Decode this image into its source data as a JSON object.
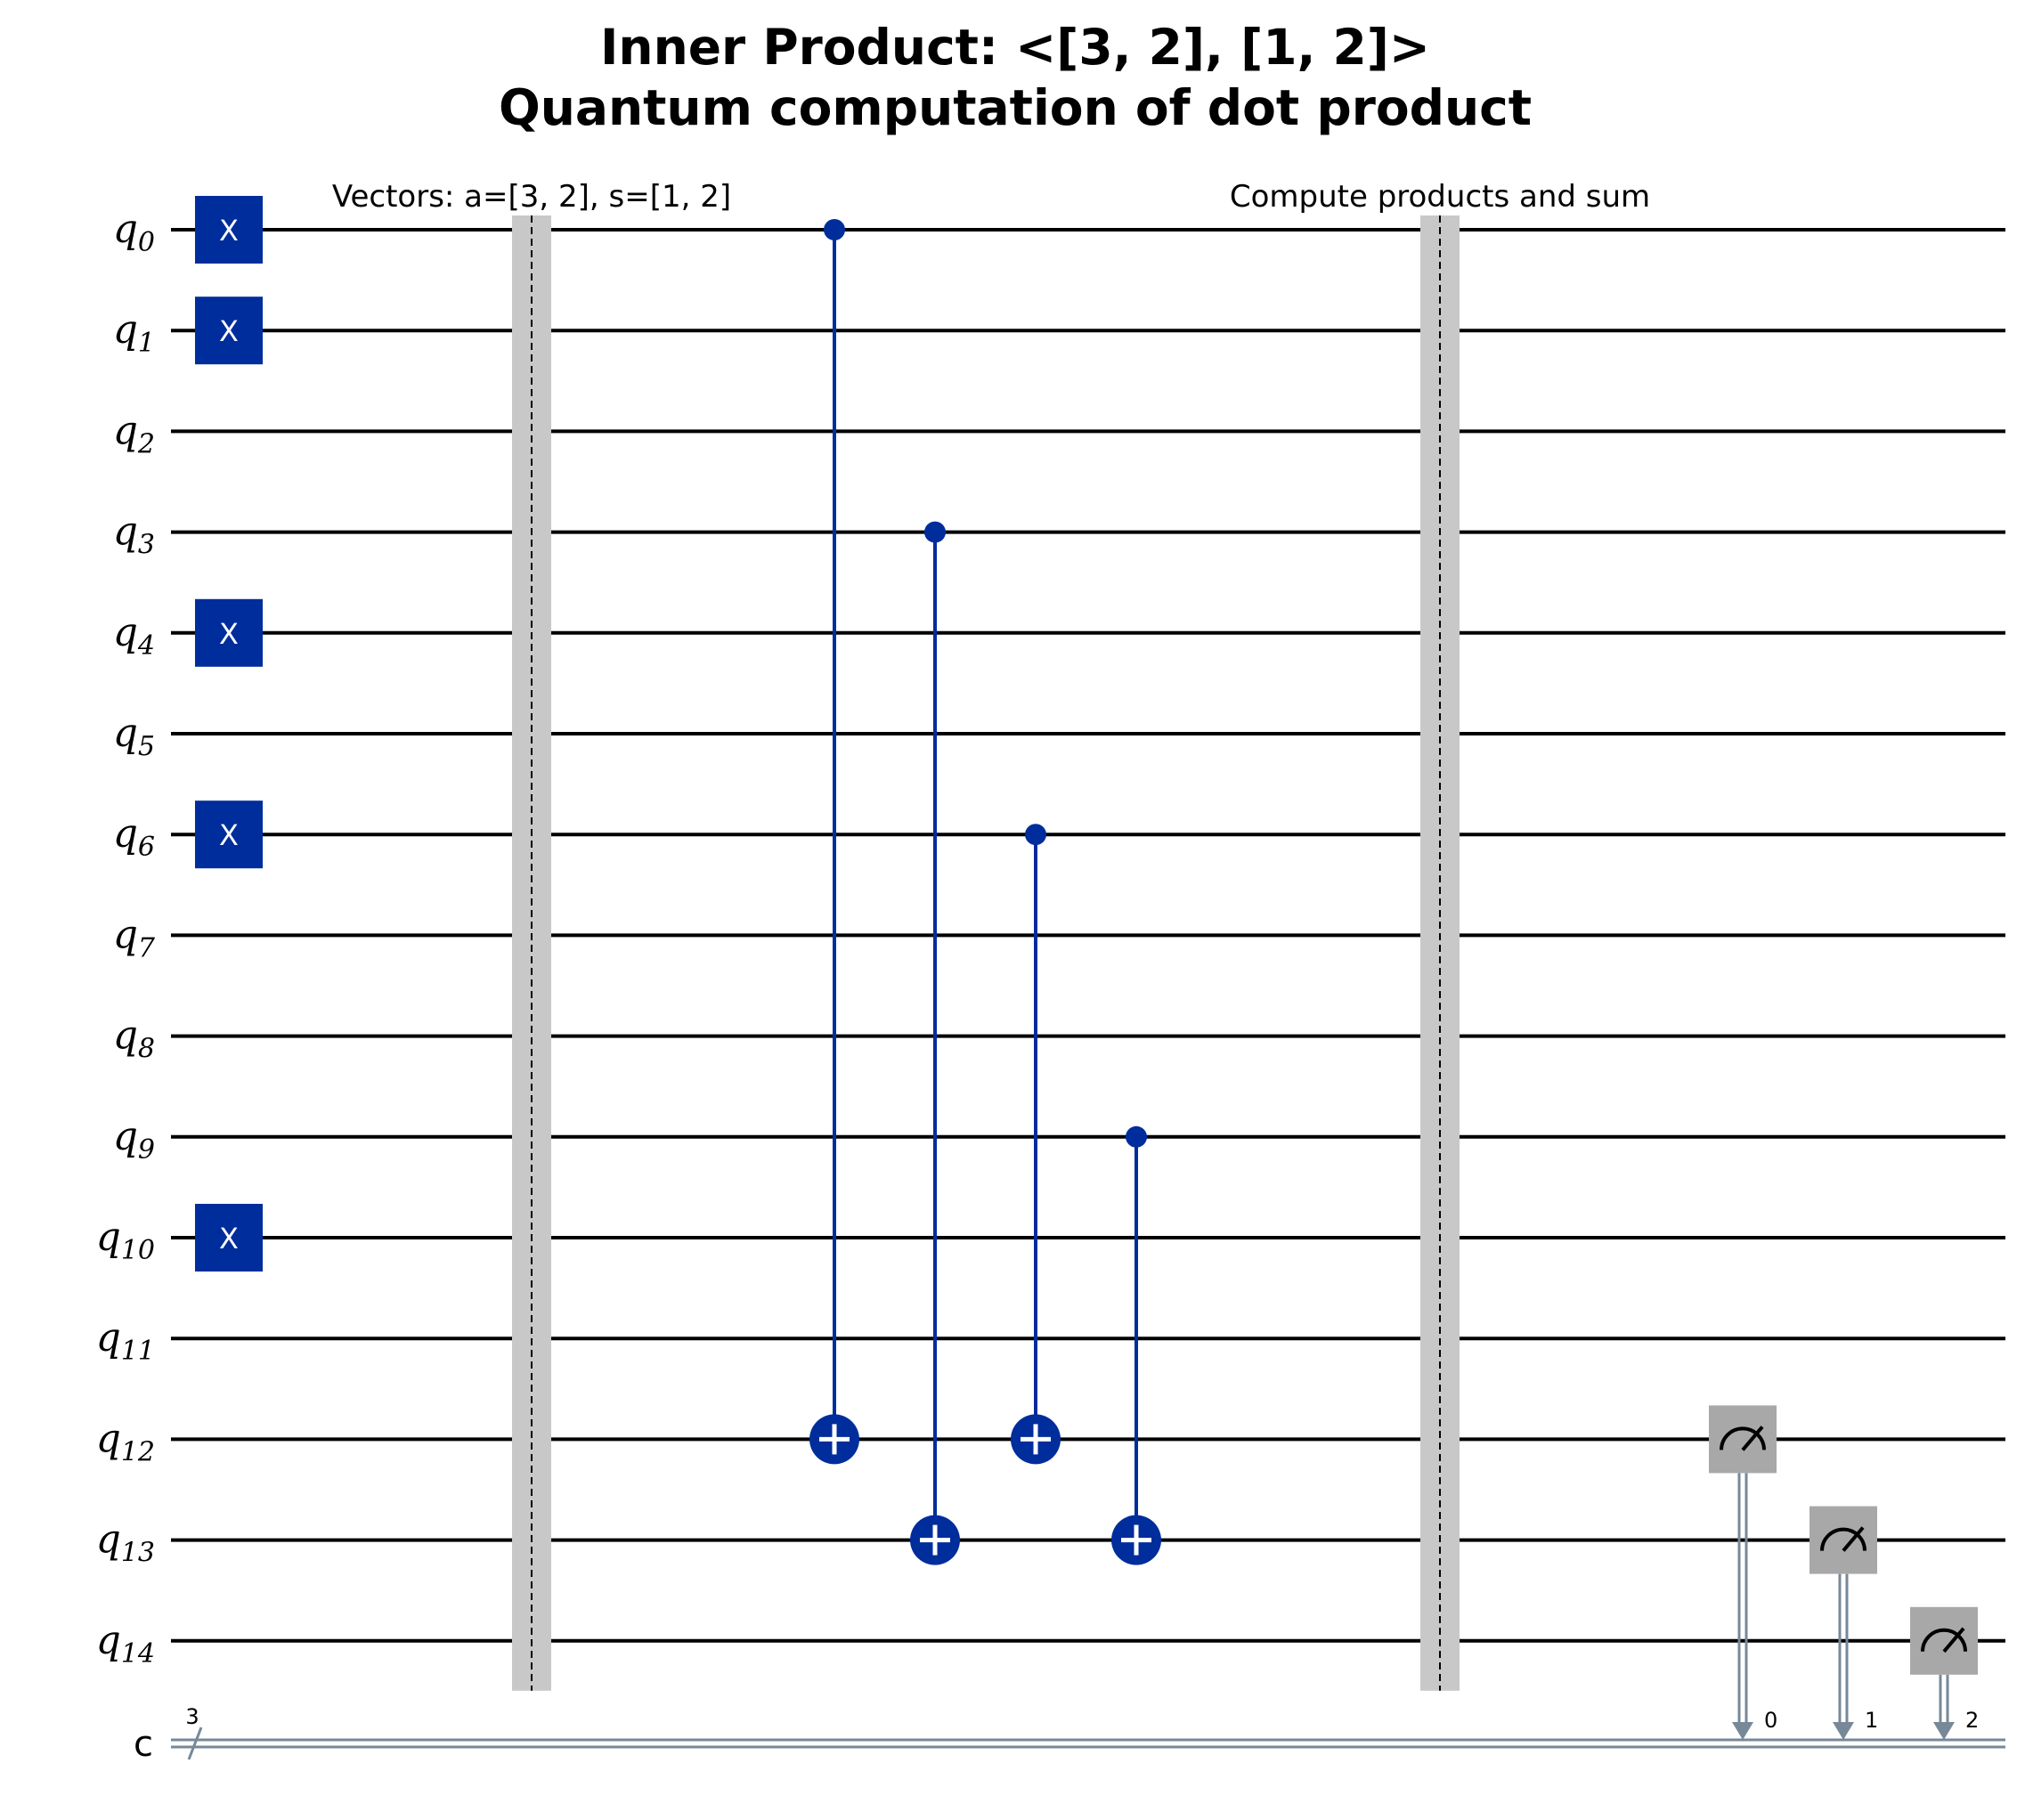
{
  "title": {
    "line1": "Inner Product: <[3, 2], [1, 2]>",
    "line2": "Quantum computation of dot product"
  },
  "qubits": [
    {
      "name": "q",
      "index": "0"
    },
    {
      "name": "q",
      "index": "1"
    },
    {
      "name": "q",
      "index": "2"
    },
    {
      "name": "q",
      "index": "3"
    },
    {
      "name": "q",
      "index": "4"
    },
    {
      "name": "q",
      "index": "5"
    },
    {
      "name": "q",
      "index": "6"
    },
    {
      "name": "q",
      "index": "7"
    },
    {
      "name": "q",
      "index": "8"
    },
    {
      "name": "q",
      "index": "9"
    },
    {
      "name": "q",
      "index": "10"
    },
    {
      "name": "q",
      "index": "11"
    },
    {
      "name": "q",
      "index": "12"
    },
    {
      "name": "q",
      "index": "13"
    },
    {
      "name": "q",
      "index": "14"
    }
  ],
  "classical_register": {
    "name": "c",
    "size": "3"
  },
  "x_gates": {
    "label": "X",
    "qubits": [
      0,
      1,
      4,
      6,
      10
    ]
  },
  "barriers": [
    {
      "label": "Vectors: a=[3, 2], s=[1, 2]"
    },
    {
      "label": "Compute products and sum"
    }
  ],
  "cnots": [
    {
      "control": 0,
      "target": 12
    },
    {
      "control": 3,
      "target": 13
    },
    {
      "control": 6,
      "target": 12
    },
    {
      "control": 9,
      "target": 13
    }
  ],
  "measurements": [
    {
      "qubit": 12,
      "bit": "0"
    },
    {
      "qubit": 13,
      "bit": "1"
    },
    {
      "qubit": 14,
      "bit": "2"
    }
  ],
  "colors": {
    "gate": "#002d9c",
    "barrier": "#c8c8c8",
    "measure": "#a8a8a8",
    "classical": "#778899",
    "wire": "#000000"
  }
}
